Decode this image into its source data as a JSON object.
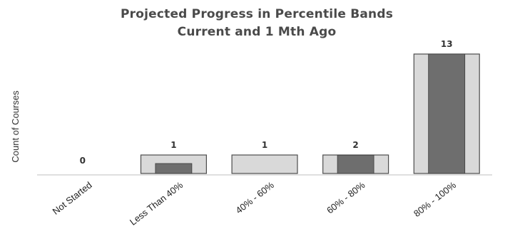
{
  "chart_data": {
    "type": "bar",
    "title_lines": [
      "Projected Progress in Percentile Bands",
      "Current and 1 Mth Ago"
    ],
    "xlabel": "",
    "ylabel": "Count of Courses",
    "categories": [
      "Not Started",
      "Less Than 40%",
      "40% - 60%",
      "60% - 80%",
      "80% - 100%"
    ],
    "series": [
      {
        "values": [
          0,
          1,
          1,
          2,
          13
        ],
        "color": "#d9d9d9"
      },
      {
        "values": [
          0,
          1,
          0,
          2,
          13
        ],
        "color": "#6e6e6e"
      }
    ],
    "data_labels": [
      "0",
      "1",
      "1",
      "2",
      "13"
    ],
    "ylim": [
      0,
      13
    ],
    "grid": false,
    "legend": "none"
  }
}
